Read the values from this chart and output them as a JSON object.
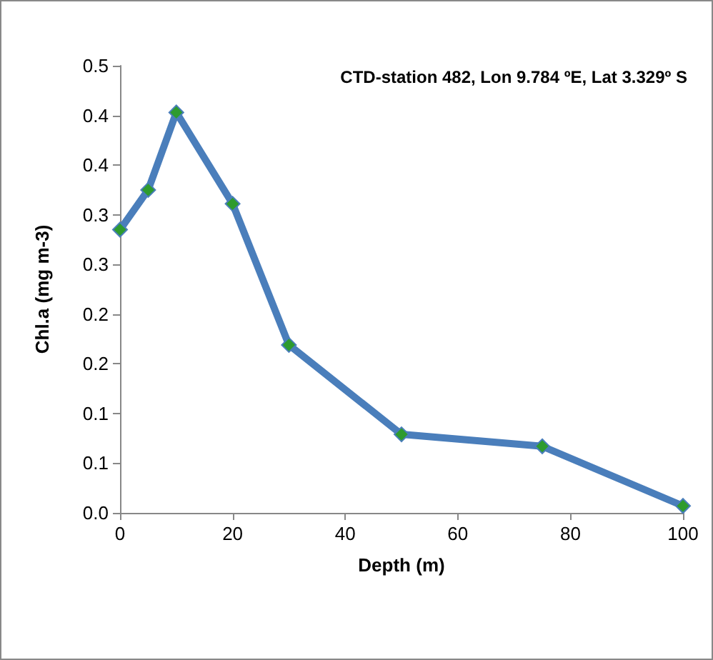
{
  "chart_data": {
    "type": "line",
    "title": "CTD-station 482, Lon 9.784 ºE, Lat 3.329º S",
    "xlabel": "Depth (m)",
    "ylabel": "Chl.a (mg m-3)",
    "x": [
      0,
      5,
      10,
      20,
      30,
      50,
      75,
      100
    ],
    "series": [
      {
        "color": "#4a7ebb",
        "values": [
          0.285,
          0.325,
          0.403,
          0.311,
          0.169,
          0.079,
          0.067,
          0.007
        ]
      }
    ],
    "xlim": [
      0,
      100
    ],
    "xticks": [
      0,
      20,
      40,
      60,
      80,
      100
    ],
    "ylim": [
      0,
      0.45
    ],
    "yticks": [
      {
        "value": 0,
        "label": "0.0"
      },
      {
        "value": 0.05,
        "label": "0.1"
      },
      {
        "value": 0.1,
        "label": "0.1"
      },
      {
        "value": 0.15,
        "label": "0.2"
      },
      {
        "value": 0.2,
        "label": "0.2"
      },
      {
        "value": 0.25,
        "label": "0.3"
      },
      {
        "value": 0.3,
        "label": "0.3"
      },
      {
        "value": 0.35,
        "label": "0.4"
      },
      {
        "value": 0.4,
        "label": "0.4"
      },
      {
        "value": 0.45,
        "label": "0.5"
      }
    ],
    "grid": false,
    "marker": "diamond",
    "line_style": "solid"
  }
}
